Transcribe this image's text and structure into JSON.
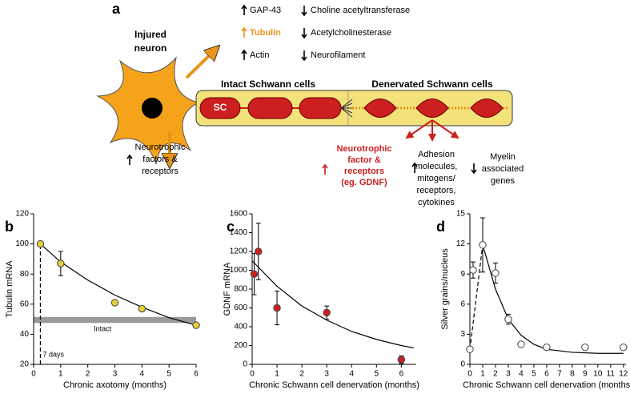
{
  "diagram": {
    "panel": "a",
    "neuron": [
      "Injured",
      "neuron"
    ],
    "up1": "GAP-43",
    "down1": "Choline acetyltransferase",
    "up2": "Tubulin",
    "down2": "Acetylcholinesterase",
    "up3": "Actin",
    "down3": "Neurofilament",
    "intact": "Intact Schwann cells",
    "denervated": "Denervated Schwann cells",
    "sc": "SC",
    "neuron_factors": [
      "Neurotrophic",
      "factors &",
      "receptors"
    ],
    "gdnf": [
      "Neurotrophic",
      "factor &",
      "receptors",
      "(eg. GDNF)"
    ],
    "adhesion": [
      "Adhesion",
      "molecules,",
      "mitogens/",
      "receptors,",
      "cytokines"
    ],
    "myelin": [
      "Myelin",
      "associated",
      "genes"
    ]
  },
  "chart_data": [
    {
      "type": "scatter",
      "panel": "b",
      "xlabel": "Chronic axotomy (months)",
      "ylabel": "Tubulin mRNA",
      "x": [
        0.25,
        1,
        3,
        4,
        6
      ],
      "values": [
        100,
        87,
        61,
        57,
        46
      ],
      "errors": [
        null,
        8,
        null,
        null,
        null
      ],
      "fit_x": [
        0.25,
        1,
        2,
        3,
        4,
        5,
        6
      ],
      "fit_values": [
        100,
        88,
        76,
        66,
        58,
        51,
        46
      ],
      "band": [
        47.5,
        51.5
      ],
      "band_label": "Intact",
      "marker_x": 0.25,
      "marker_label": "7 days",
      "color": "#e3cf3a",
      "xlim": [
        0,
        6
      ],
      "xticks": [
        0,
        1,
        2,
        3,
        4,
        5,
        6
      ],
      "ylim": [
        20,
        120
      ],
      "yticks": [
        20,
        40,
        60,
        80,
        100,
        120
      ]
    },
    {
      "type": "scatter",
      "panel": "c",
      "xlabel": "Chronic Schwann cell denervation (months)",
      "ylabel": "GDNF mRNA",
      "x": [
        0.08,
        0.25,
        1,
        3,
        6
      ],
      "values": [
        960,
        1200,
        600,
        550,
        50
      ],
      "errors": [
        220,
        300,
        180,
        70,
        40
      ],
      "fit_x": [
        0,
        1,
        2,
        3,
        4,
        5,
        6,
        6.5
      ],
      "fit_values": [
        1100,
        830,
        620,
        470,
        350,
        265,
        200,
        175
      ],
      "color": "#cc1f1f",
      "xlim": [
        0,
        6.6
      ],
      "xticks": [
        0,
        1,
        2,
        3,
        4,
        5,
        6
      ],
      "ylim": [
        0,
        1600
      ],
      "yticks": [
        0,
        200,
        400,
        600,
        800,
        1000,
        1200,
        1400,
        1600
      ]
    },
    {
      "type": "scatter",
      "panel": "d",
      "xlabel": "Chronic Schwann cell denervation (months)",
      "ylabel": "Silver grains/nucleus",
      "x": [
        0,
        0.25,
        1,
        2,
        3,
        4,
        6,
        9,
        12
      ],
      "values": [
        1.5,
        9.4,
        11.9,
        9.1,
        4.5,
        2,
        1.7,
        1.7,
        1.7
      ],
      "errors": [
        null,
        0.8,
        2.7,
        1,
        0.5,
        null,
        null,
        null,
        null
      ],
      "fit_x": [
        1,
        2,
        3,
        4,
        5,
        6,
        8,
        10,
        12
      ],
      "fit_values": [
        11.9,
        7.5,
        4.5,
        2.9,
        2,
        1.5,
        1.2,
        1.1,
        1.1
      ],
      "rise_x": [
        0,
        1
      ],
      "rise_values": [
        1.5,
        11.9
      ],
      "color": "#ffffff",
      "xlim": [
        0,
        12.2
      ],
      "xticks": [
        0,
        1,
        2,
        3,
        4,
        5,
        6,
        7,
        8,
        9,
        10,
        11,
        12
      ],
      "ylim": [
        0,
        15
      ],
      "yticks": [
        0,
        3,
        6,
        9,
        12,
        15
      ]
    }
  ]
}
